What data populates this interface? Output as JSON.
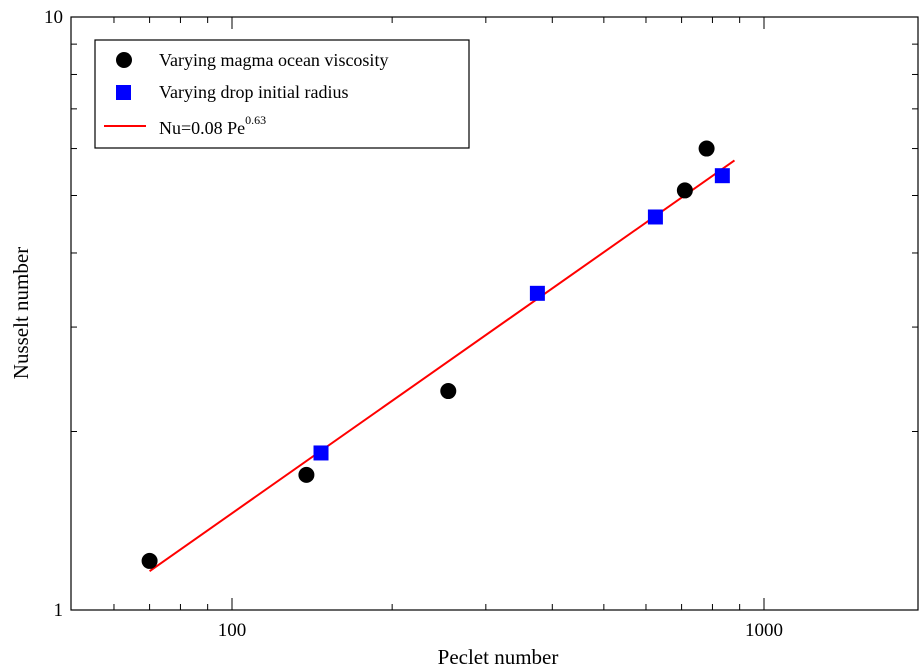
{
  "chart_data": {
    "type": "scatter",
    "xlabel": "Peclet number",
    "ylabel": "Nusselt number",
    "xscale": "log",
    "yscale": "log",
    "xlim": [
      50,
      3000
    ],
    "ylim": [
      1,
      10
    ],
    "xticks_labeled": [
      {
        "value": 100,
        "label": "100"
      },
      {
        "value": 1000,
        "label": "1000"
      }
    ],
    "yticks_labeled": [
      {
        "value": 1,
        "label": "1"
      },
      {
        "value": 10,
        "label": "10"
      }
    ],
    "grid": false,
    "legend_position": "top-left",
    "series": [
      {
        "name": "Varying magma ocean viscosity",
        "marker": "circle",
        "color": "#000000",
        "points": [
          {
            "x": 70,
            "y": 1.21
          },
          {
            "x": 138,
            "y": 1.69
          },
          {
            "x": 255,
            "y": 2.34
          },
          {
            "x": 710,
            "y": 5.1
          },
          {
            "x": 780,
            "y": 6.0
          }
        ]
      },
      {
        "name": "Varying drop initial radius",
        "marker": "square",
        "color": "#0000ff",
        "points": [
          {
            "x": 147,
            "y": 1.84
          },
          {
            "x": 375,
            "y": 3.42
          },
          {
            "x": 625,
            "y": 4.6
          },
          {
            "x": 835,
            "y": 5.4
          }
        ]
      },
      {
        "name_prefix": "Nu=0.08 Pe",
        "name_exponent": "0.63",
        "type": "line",
        "color": "#ff0000",
        "coefficient": 0.08,
        "exponent": 0.63,
        "x_range": [
          70,
          880
        ]
      }
    ]
  }
}
